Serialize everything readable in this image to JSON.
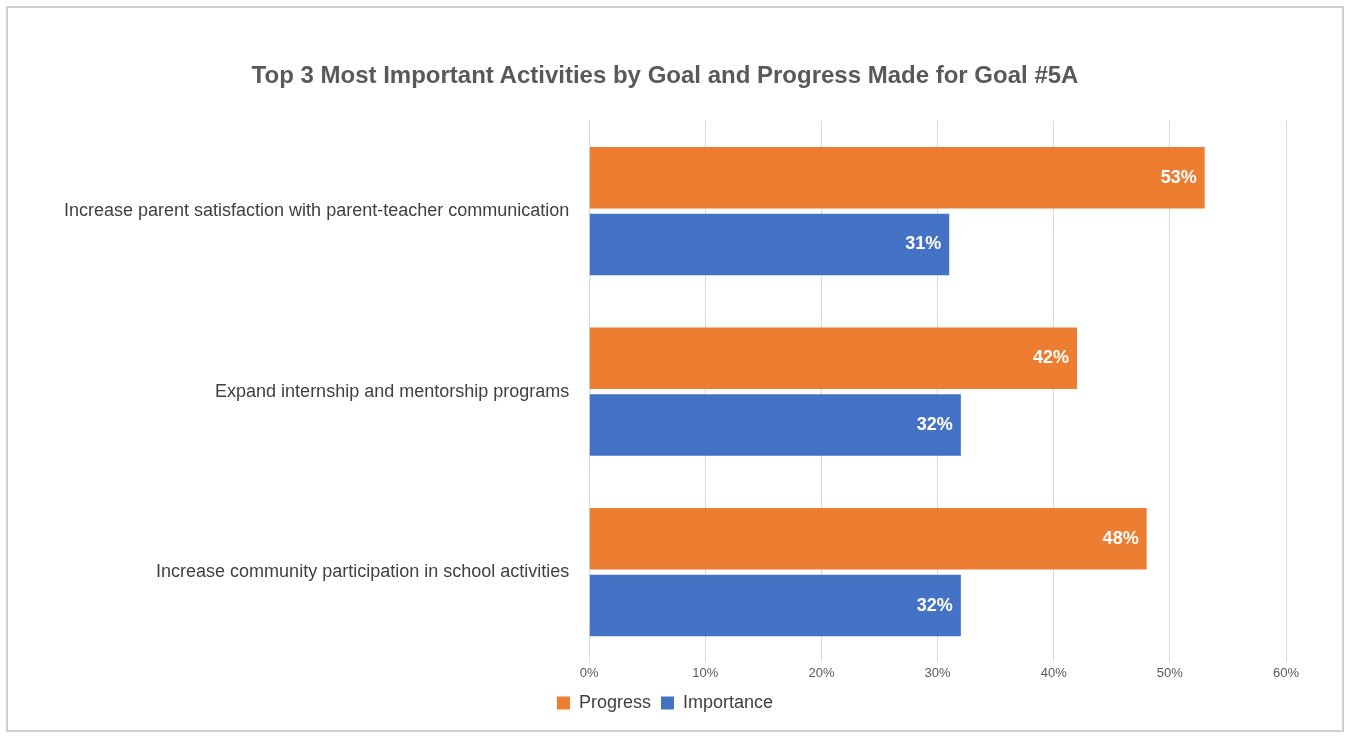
{
  "chart_data": {
    "type": "bar",
    "orientation": "horizontal",
    "title": "Top 3 Most Important Activities by Goal and Progress Made for Goal #5A",
    "categories": [
      "Increase parent satisfaction with parent-teacher communication",
      "Expand internship and mentorship programs",
      "Increase community participation in school activities"
    ],
    "series": [
      {
        "name": "Progress",
        "color": "#ed7d31",
        "values": [
          53,
          42,
          48
        ],
        "value_labels": [
          "53%",
          "42%",
          "48%"
        ]
      },
      {
        "name": "Importance",
        "color": "#4472c4",
        "values": [
          31,
          32,
          32
        ],
        "value_labels": [
          "31%",
          "32%",
          "32%"
        ]
      }
    ],
    "xlim": [
      0,
      60
    ],
    "xticks": [
      {
        "value": 0,
        "label": "0%"
      },
      {
        "value": 10,
        "label": "10%"
      },
      {
        "value": 20,
        "label": "20%"
      },
      {
        "value": 30,
        "label": "30%"
      },
      {
        "value": 40,
        "label": "40%"
      },
      {
        "value": 50,
        "label": "50%"
      },
      {
        "value": 60,
        "label": "60%"
      }
    ],
    "grid": "x",
    "legend": "bottom"
  }
}
